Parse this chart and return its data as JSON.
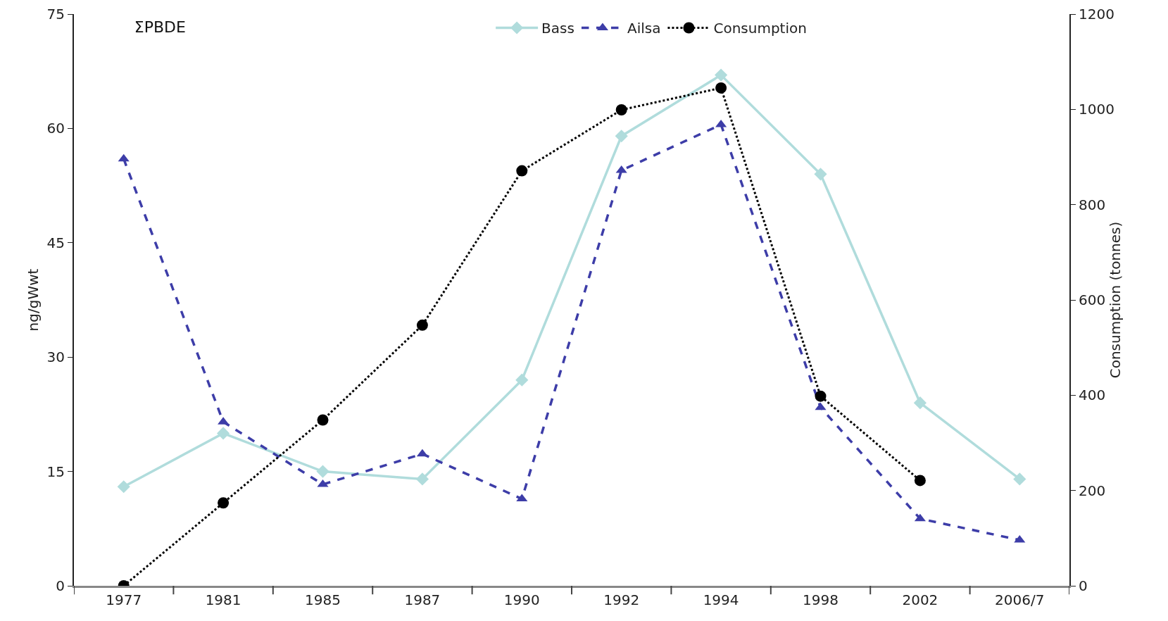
{
  "chart_data": {
    "type": "line",
    "title": "ΣPBDE",
    "ylabel": "ng/gWwt",
    "y2label": "Consumption (tonnes)",
    "categories": [
      "1977",
      "1981",
      "1985",
      "1987",
      "1990",
      "1992",
      "1994",
      "1998",
      "2002",
      "2006/7"
    ],
    "series": [
      {
        "name": "Bass",
        "color": "#b0dcdc",
        "marker": "diamond",
        "line_style": "solid",
        "values": [
          13,
          20,
          15,
          14,
          27,
          59,
          67,
          54,
          24,
          14
        ]
      },
      {
        "name": "Ailsa",
        "color": "#3d3da8",
        "marker": "triangle",
        "line_style": "dashed",
        "values": [
          56,
          21.5,
          13.3,
          17.3,
          11.4,
          54.5,
          60.5,
          23.4,
          8.8,
          6
        ]
      },
      {
        "name": "Consumption",
        "color": "#000000",
        "marker": "circle",
        "line_style": "dotted",
        "axis": "y2",
        "values": [
          0,
          174,
          348,
          547,
          871,
          999,
          1045,
          398,
          221,
          null
        ]
      }
    ],
    "ylim": [
      0,
      75
    ],
    "yticks": [
      0,
      15,
      30,
      45,
      60,
      75
    ],
    "y2lim": [
      0,
      1200
    ],
    "y2ticks": [
      0,
      200,
      400,
      600,
      800,
      1000,
      1200
    ],
    "grid": false,
    "legend": "top"
  }
}
